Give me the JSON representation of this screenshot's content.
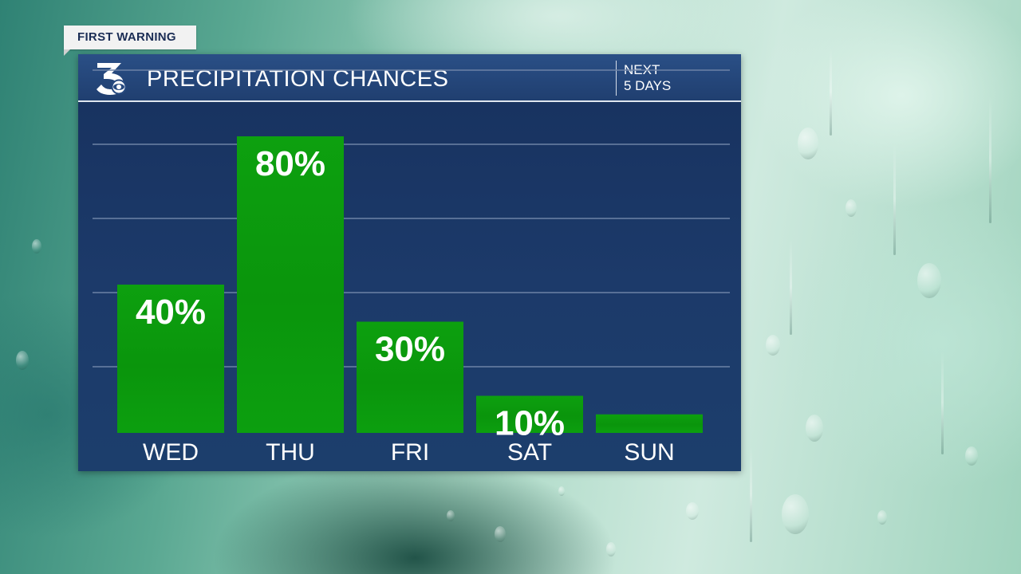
{
  "badge": {
    "label": "FIRST WARNING"
  },
  "panel": {
    "title": "PRECIPITATION CHANCES",
    "period_line1": "NEXT",
    "period_line2": "5 DAYS"
  },
  "colors": {
    "bar": "#0b9a0e",
    "panel": "#1a3562",
    "header": "#274a80",
    "gridline": "#6d83a6"
  },
  "chart_data": {
    "type": "bar",
    "categories": [
      "WED",
      "THU",
      "FRI",
      "SAT",
      "SUN"
    ],
    "values": [
      40,
      80,
      30,
      10,
      5
    ],
    "data_labels": [
      "40%",
      "80%",
      "30%",
      "10%",
      ""
    ],
    "title": "PRECIPITATION CHANCES",
    "xlabel": "",
    "ylabel": "",
    "ylim": [
      0,
      100
    ],
    "grid": true,
    "legend": "none"
  }
}
